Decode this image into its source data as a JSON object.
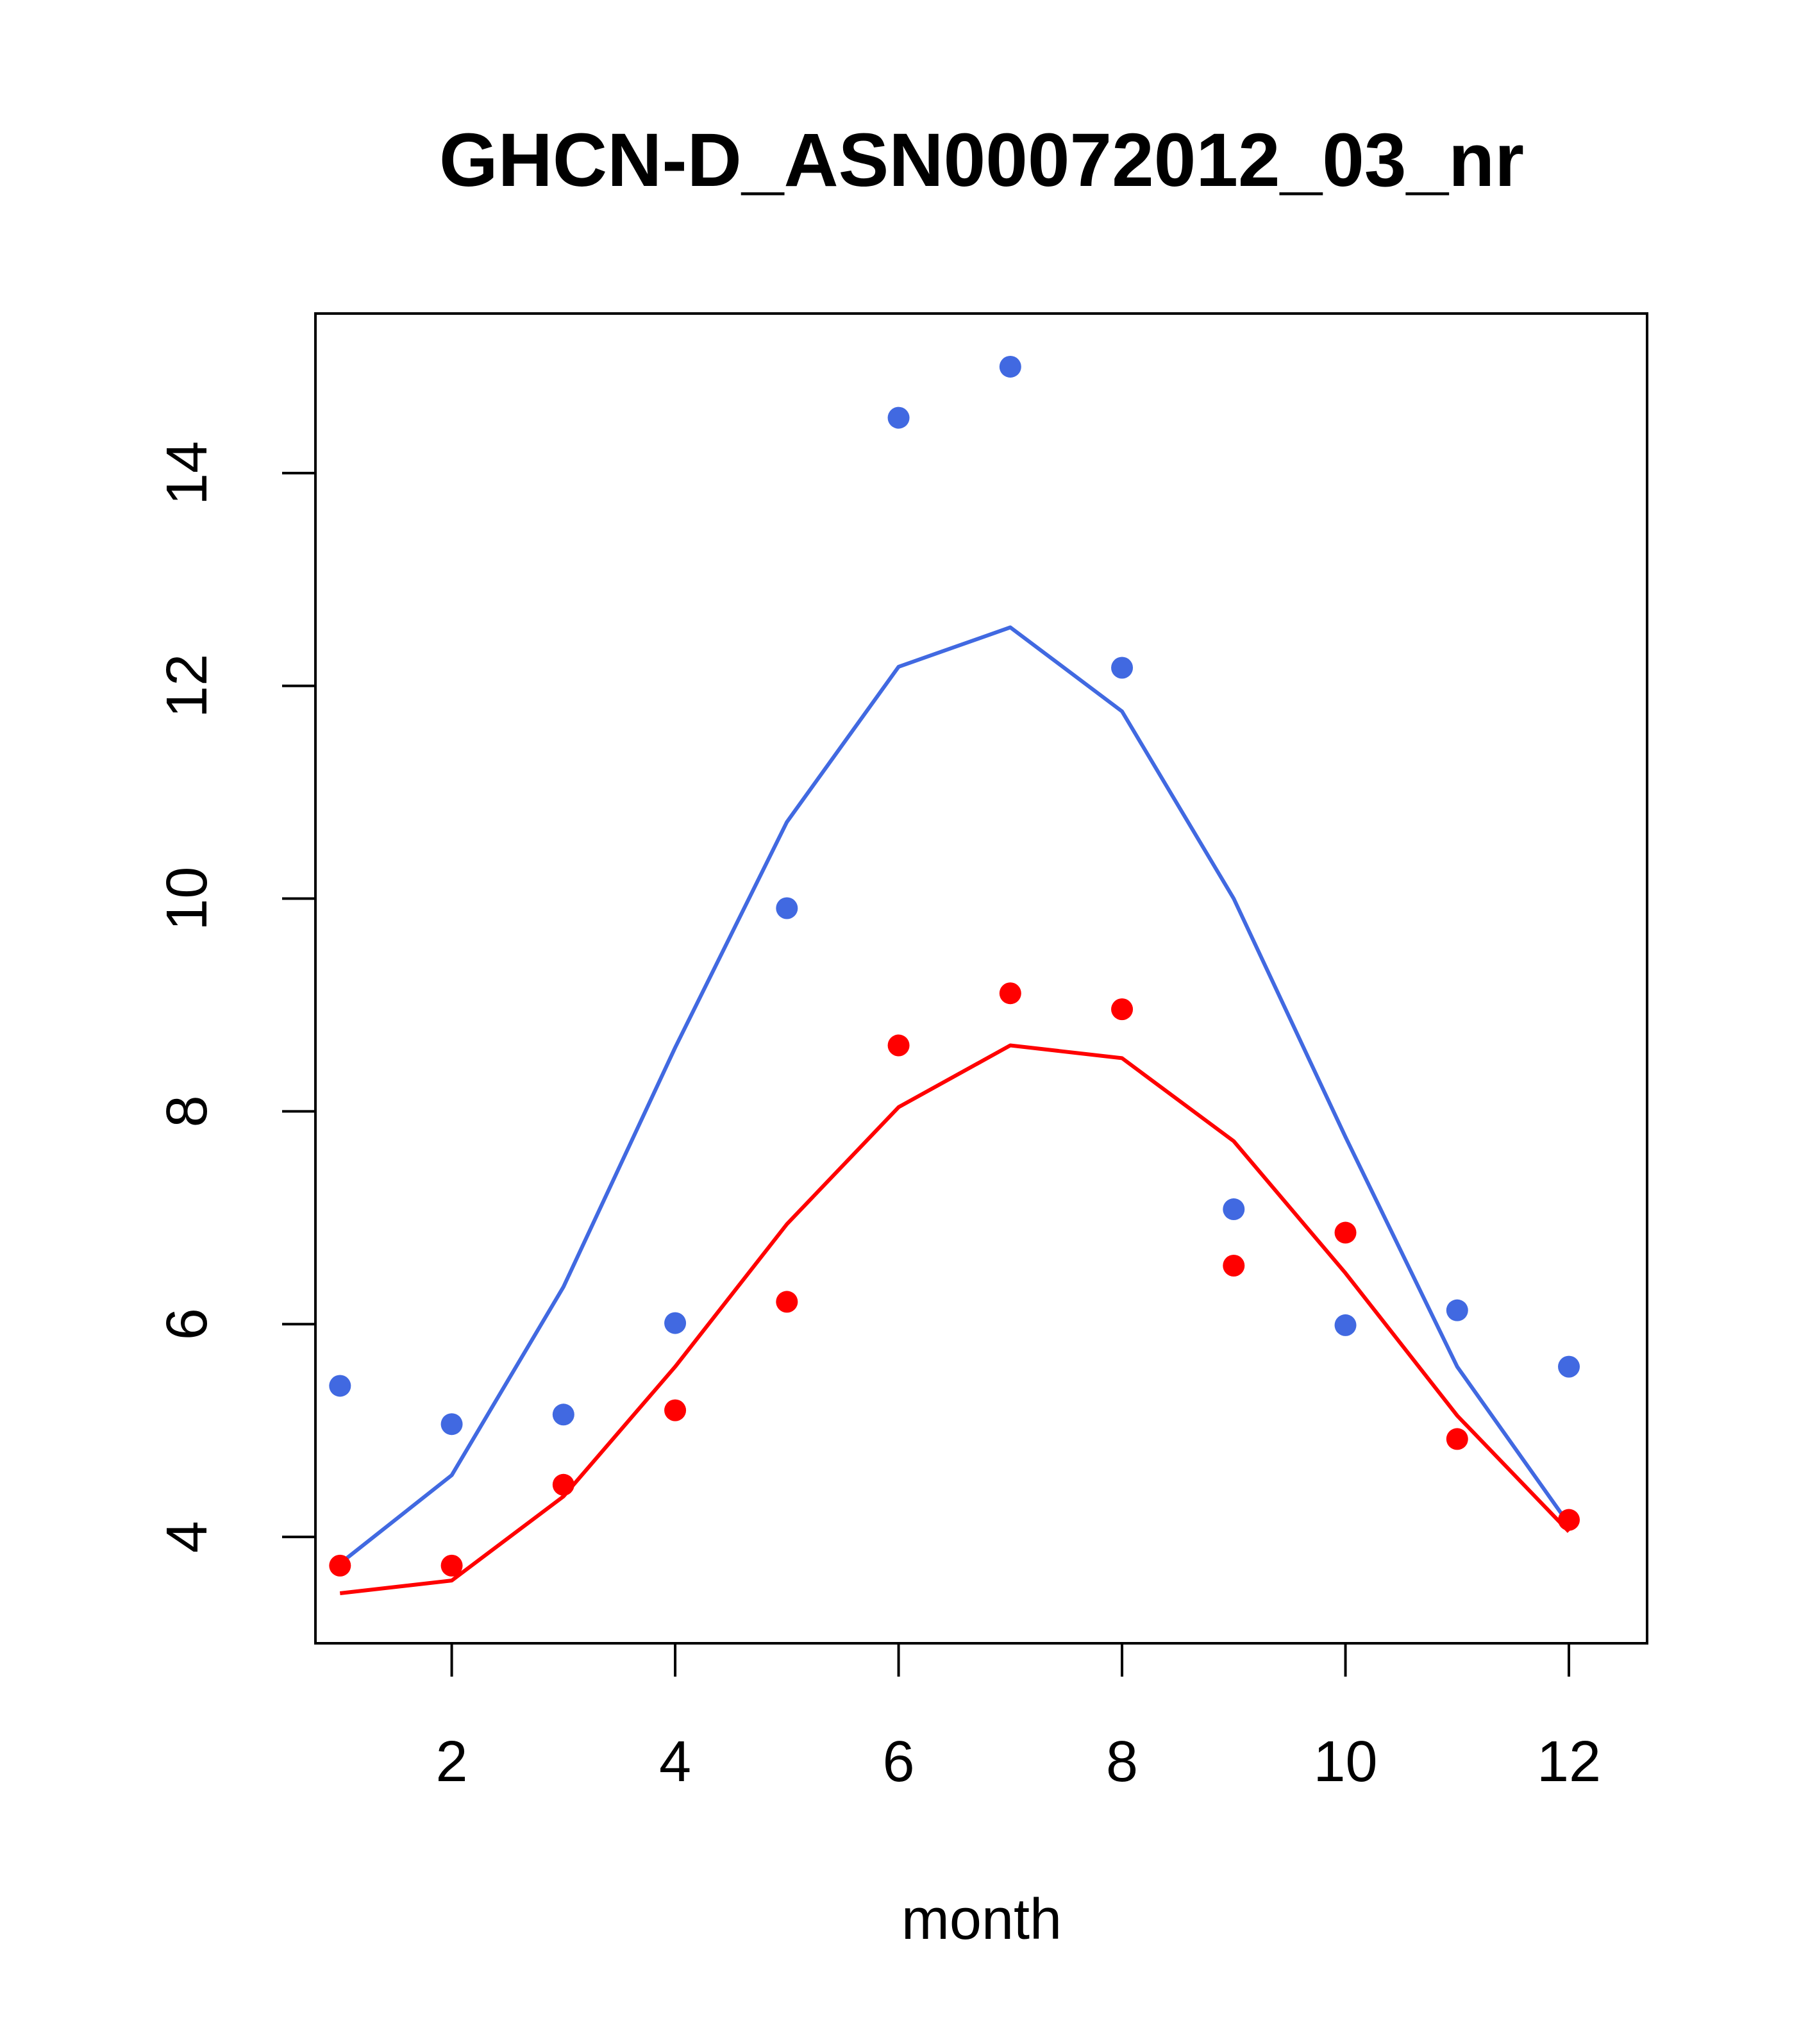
{
  "chart_data": {
    "type": "line",
    "title": "GHCN-D_ASN00072012_03_nr",
    "xlabel": "month",
    "ylabel": "",
    "xlim": [
      0.78,
      12.7
    ],
    "ylim": [
      3.0,
      15.5
    ],
    "x_ticks": [
      2,
      4,
      6,
      8,
      10,
      12
    ],
    "y_ticks": [
      4,
      6,
      8,
      10,
      12,
      14
    ],
    "x": [
      1,
      2,
      3,
      4,
      5,
      6,
      7,
      8,
      9,
      10,
      11,
      12
    ],
    "colors": {
      "blue": "#4169e1",
      "red": "#ff0000",
      "axis": "#000000"
    },
    "series": [
      {
        "name": "blue-fit",
        "kind": "line",
        "color": "#4169e1",
        "values": [
          3.75,
          4.58,
          6.35,
          8.6,
          10.72,
          12.18,
          12.55,
          11.76,
          10.0,
          7.76,
          5.6,
          4.12
        ]
      },
      {
        "name": "red-fit",
        "kind": "line",
        "color": "#ff0000",
        "values": [
          3.47,
          3.59,
          4.38,
          5.6,
          6.94,
          8.04,
          8.62,
          8.5,
          7.72,
          6.48,
          5.14,
          4.05
        ]
      },
      {
        "name": "blue-observed",
        "kind": "points",
        "color": "#4169e1",
        "values": [
          5.42,
          5.06,
          5.15,
          6.01,
          9.91,
          14.52,
          15.0,
          12.17,
          7.08,
          5.99,
          6.13,
          5.6
        ]
      },
      {
        "name": "red-observed",
        "kind": "points",
        "color": "#ff0000",
        "values": [
          3.73,
          3.73,
          4.49,
          5.19,
          6.21,
          8.62,
          9.11,
          8.96,
          6.55,
          6.86,
          4.92,
          4.16
        ]
      }
    ]
  }
}
